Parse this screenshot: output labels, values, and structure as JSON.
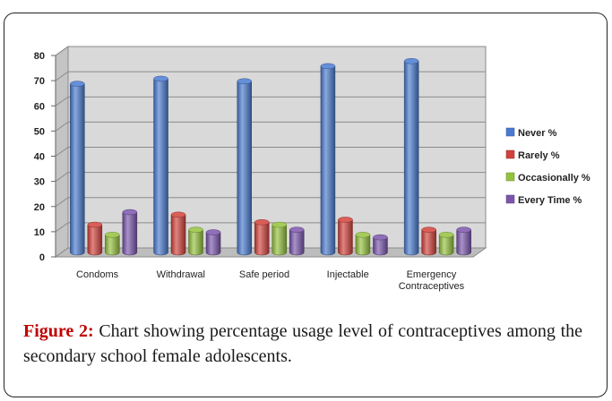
{
  "chart_data": {
    "type": "bar",
    "style": "3d-clustered-cylinder",
    "categories": [
      "Condoms",
      "Withdrawal",
      "Safe period",
      "Injectable",
      "Emergency Contraceptives"
    ],
    "category_lines": [
      [
        "Condoms"
      ],
      [
        "Withdrawal"
      ],
      [
        "Safe period"
      ],
      [
        "Injectable"
      ],
      [
        "Emergency",
        "Contraceptives"
      ]
    ],
    "series": [
      {
        "name": "Never %",
        "color": "#4a7bd0",
        "values": [
          67,
          69,
          68,
          74,
          76
        ]
      },
      {
        "name": "Rarely %",
        "color": "#d2423b",
        "values": [
          11,
          15,
          12,
          13,
          9
        ]
      },
      {
        "name": "Occasionally %",
        "color": "#95c23d",
        "values": [
          7,
          9,
          11,
          7,
          7
        ]
      },
      {
        "name": "Every Time %",
        "color": "#7b56ac",
        "values": [
          16,
          8,
          9,
          6,
          9
        ]
      }
    ],
    "yticks": [
      0,
      10,
      20,
      30,
      40,
      50,
      60,
      70,
      80
    ],
    "ylim": [
      0,
      80
    ],
    "grid": true,
    "legend_position": "right"
  },
  "caption": {
    "label": "Figure 2:",
    "text": " Chart showing percentage usage level of contraceptives among the secondary school female adolescents."
  }
}
